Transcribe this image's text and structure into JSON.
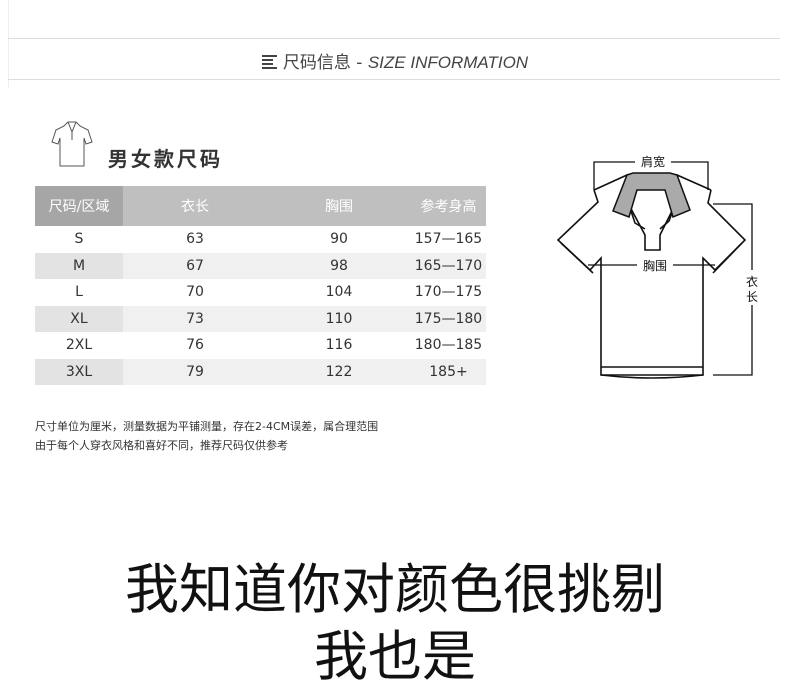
{
  "header": {
    "title_cn": "尺码信息",
    "separator": "-",
    "title_en": "SIZE INFORMATION",
    "icon": "menu-lines-icon"
  },
  "section": {
    "title": "男女款尺码",
    "icon": "polo-shirt-icon"
  },
  "table": {
    "headers": [
      "尺码/区域",
      "衣长",
      "胸围",
      "参考身高"
    ],
    "rows": [
      [
        "S",
        "63",
        "90",
        "157—165"
      ],
      [
        "M",
        "67",
        "98",
        "165—170"
      ],
      [
        "L",
        "70",
        "104",
        "170—175"
      ],
      [
        "XL",
        "73",
        "110",
        "175—180"
      ],
      [
        "2XL",
        "76",
        "116",
        "180—185"
      ],
      [
        "3XL",
        "79",
        "122",
        "185+"
      ]
    ]
  },
  "notes": [
    "尺寸单位为厘米，测量数据为平铺测量，存在2-4CM误差，属合理范围",
    "由于每个人穿衣风格和喜好不同，推荐尺码仅供参考"
  ],
  "diagram": {
    "shoulder_label": "肩宽",
    "chest_label": "胸围",
    "length_label_1": "衣",
    "length_label_2": "长"
  },
  "slogan": {
    "line1": "我知道你对颜色很挑剔",
    "line2": "我也是"
  }
}
